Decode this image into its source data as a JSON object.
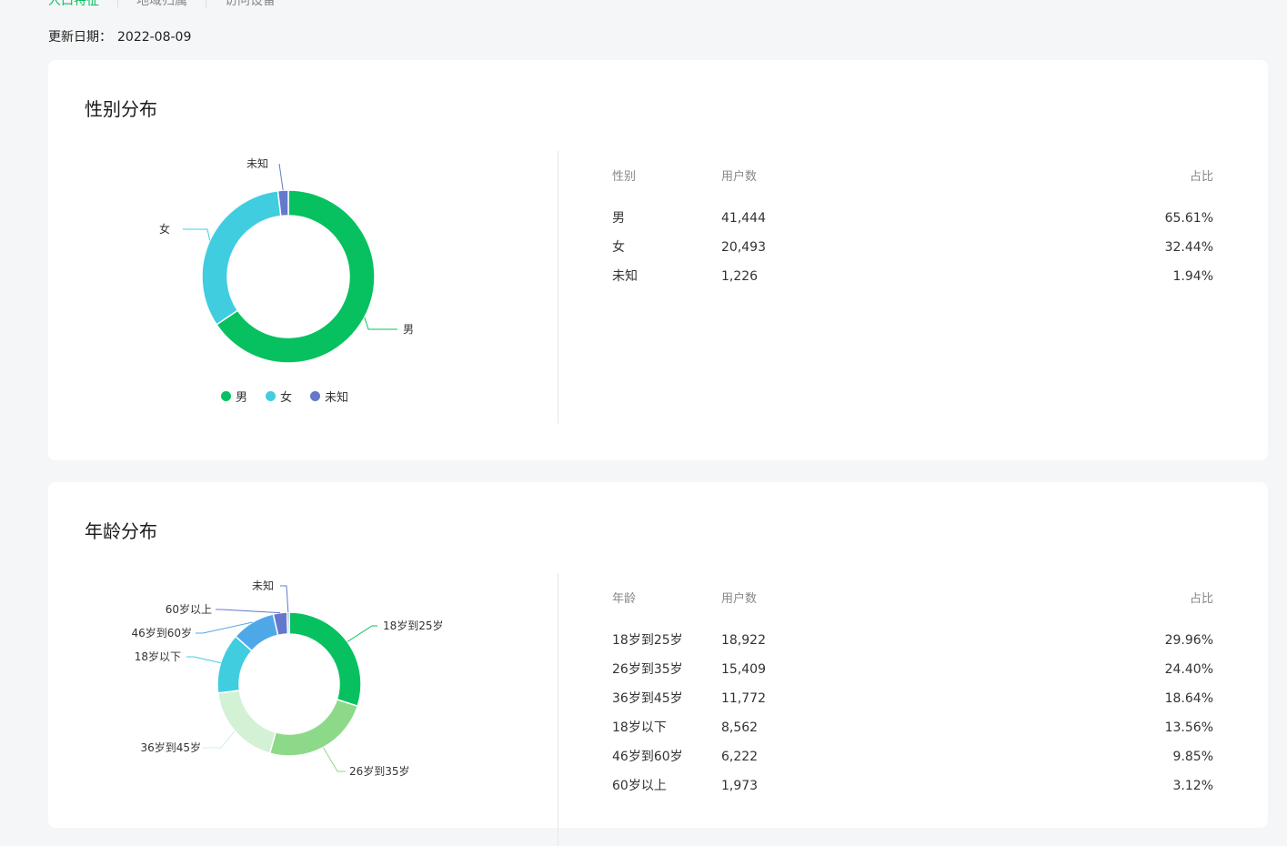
{
  "tabs": [
    {
      "label": "人口特征",
      "active": true
    },
    {
      "label": "地域归属",
      "active": false
    },
    {
      "label": "访问设备",
      "active": false
    }
  ],
  "update": {
    "label": "更新日期：",
    "date": "2022-08-09"
  },
  "gender": {
    "title": "性别分布",
    "table_headers": [
      "性别",
      "用户数",
      "占比"
    ],
    "rows": [
      {
        "name": "男",
        "count": "41,444",
        "pct": "65.61%"
      },
      {
        "name": "女",
        "count": "20,493",
        "pct": "32.44%"
      },
      {
        "name": "未知",
        "count": "1,226",
        "pct": "1.94%"
      }
    ],
    "legend": [
      {
        "name": "男",
        "color": "#07c160"
      },
      {
        "name": "女",
        "color": "#40cde0"
      },
      {
        "name": "未知",
        "color": "#6478cc"
      }
    ]
  },
  "age": {
    "title": "年龄分布",
    "table_headers": [
      "年龄",
      "用户数",
      "占比"
    ],
    "rows": [
      {
        "name": "18岁到25岁",
        "count": "18,922",
        "pct": "29.96%"
      },
      {
        "name": "26岁到35岁",
        "count": "15,409",
        "pct": "24.40%"
      },
      {
        "name": "36岁到45岁",
        "count": "11,772",
        "pct": "18.64%"
      },
      {
        "name": "18岁以下",
        "count": "8,562",
        "pct": "13.56%"
      },
      {
        "name": "46岁到60岁",
        "count": "6,222",
        "pct": "9.85%"
      },
      {
        "name": "60岁以上",
        "count": "1,973",
        "pct": "3.12%"
      }
    ]
  },
  "chart_data": [
    {
      "type": "pie",
      "title": "性别分布",
      "categories": [
        "男",
        "女",
        "未知"
      ],
      "values": [
        65.61,
        32.44,
        1.94
      ],
      "colors": [
        "#07c160",
        "#40cde0",
        "#6478cc"
      ],
      "legend": "bottom"
    },
    {
      "type": "pie",
      "title": "年龄分布",
      "categories": [
        "18岁到25岁",
        "26岁到35岁",
        "36岁到45岁",
        "18岁以下",
        "46岁到60岁",
        "60岁以上",
        "未知"
      ],
      "values": [
        29.96,
        24.4,
        18.64,
        13.56,
        9.85,
        3.12,
        0.47
      ],
      "colors": [
        "#07c160",
        "#8dd98a",
        "#d3f1d4",
        "#40cde0",
        "#4ea8e8",
        "#6478cc",
        "#6478cc"
      ]
    }
  ]
}
